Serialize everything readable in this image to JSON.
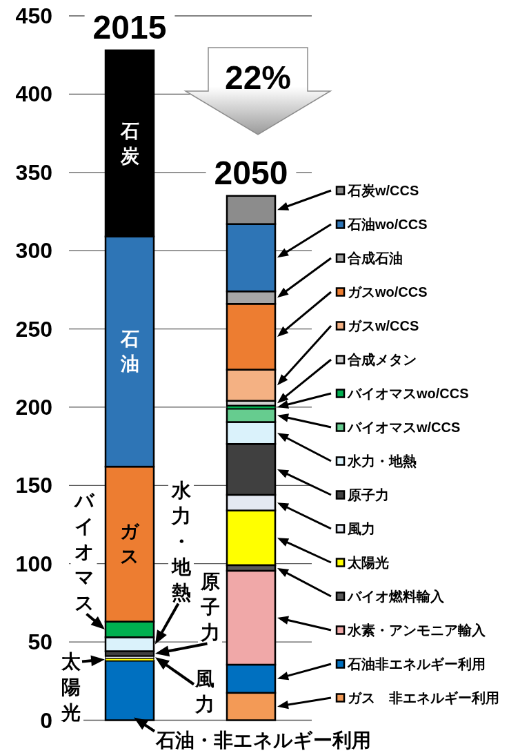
{
  "chart_data": {
    "type": "bar",
    "stacked": true,
    "categories": [
      "2015",
      "2050"
    ],
    "ylim": [
      0,
      450
    ],
    "yticks": [
      0,
      50,
      100,
      150,
      200,
      250,
      300,
      350,
      400,
      450
    ],
    "grid": "y",
    "legend": "right",
    "annotations": [
      "22%"
    ],
    "series": [
      {
        "name": "石油・非エネルギー利用",
        "color": "#0070c0",
        "values": [
          38,
          null
        ]
      },
      {
        "name": "太陽光",
        "color": "#ffff00",
        "values": [
          1.5,
          null
        ]
      },
      {
        "name": "風力",
        "color": "#e4e9f2",
        "values": [
          1.5,
          null
        ]
      },
      {
        "name": "原子力",
        "color": "#404040",
        "values": [
          3,
          null
        ]
      },
      {
        "name": "水力・地熱",
        "color": "#daf2fb",
        "values": [
          9,
          null
        ]
      },
      {
        "name": "バイオマス",
        "color": "#00b050",
        "values": [
          10,
          null
        ]
      },
      {
        "name": "ガス",
        "color": "#ed7d31",
        "values": [
          99,
          null
        ]
      },
      {
        "name": "石油",
        "color": "#2e75b6",
        "values": [
          147,
          null
        ]
      },
      {
        "name": "石炭",
        "color": "#000000",
        "values": [
          119,
          null
        ]
      },
      {
        "name": "ガス　非エネルギー利用",
        "color": "#f39a56",
        "values": [
          null,
          17.5
        ]
      },
      {
        "name": "石油非エネルギー利用",
        "color": "#0070c0",
        "values": [
          null,
          18
        ]
      },
      {
        "name": "水素・アンモニア輸入",
        "color": "#f0a8a8",
        "values": [
          null,
          60
        ]
      },
      {
        "name": "バイオ燃料輸入",
        "color": "#595959",
        "values": [
          null,
          3.5
        ]
      },
      {
        "name": "太陽光",
        "color": "#ffff00",
        "values": [
          null,
          35
        ]
      },
      {
        "name": "風力",
        "color": "#e4e9f2",
        "values": [
          null,
          10
        ]
      },
      {
        "name": "原子力",
        "color": "#404040",
        "values": [
          null,
          32.5
        ]
      },
      {
        "name": "水力・地熱",
        "color": "#daf2fb",
        "values": [
          null,
          14
        ]
      },
      {
        "name": "バイオマスw/CCS",
        "color": "#66cc8f",
        "values": [
          null,
          8.5
        ]
      },
      {
        "name": "バイオマスwo/CCS",
        "color": "#00b050",
        "values": [
          null,
          2
        ]
      },
      {
        "name": "合成メタン",
        "color": "#d0d0d0",
        "values": [
          null,
          3
        ]
      },
      {
        "name": "ガスw/CCS",
        "color": "#f4b183",
        "values": [
          null,
          20
        ]
      },
      {
        "name": "ガスwo/CCS",
        "color": "#ed7d31",
        "values": [
          null,
          42
        ]
      },
      {
        "name": "合成石油",
        "color": "#a6a6a6",
        "values": [
          null,
          8
        ]
      },
      {
        "name": "石油wo/CCS",
        "color": "#2e75b6",
        "values": [
          null,
          43
        ]
      },
      {
        "name": "石炭w/CCS",
        "color": "#8c8c8c",
        "values": [
          null,
          18
        ]
      }
    ]
  }
}
